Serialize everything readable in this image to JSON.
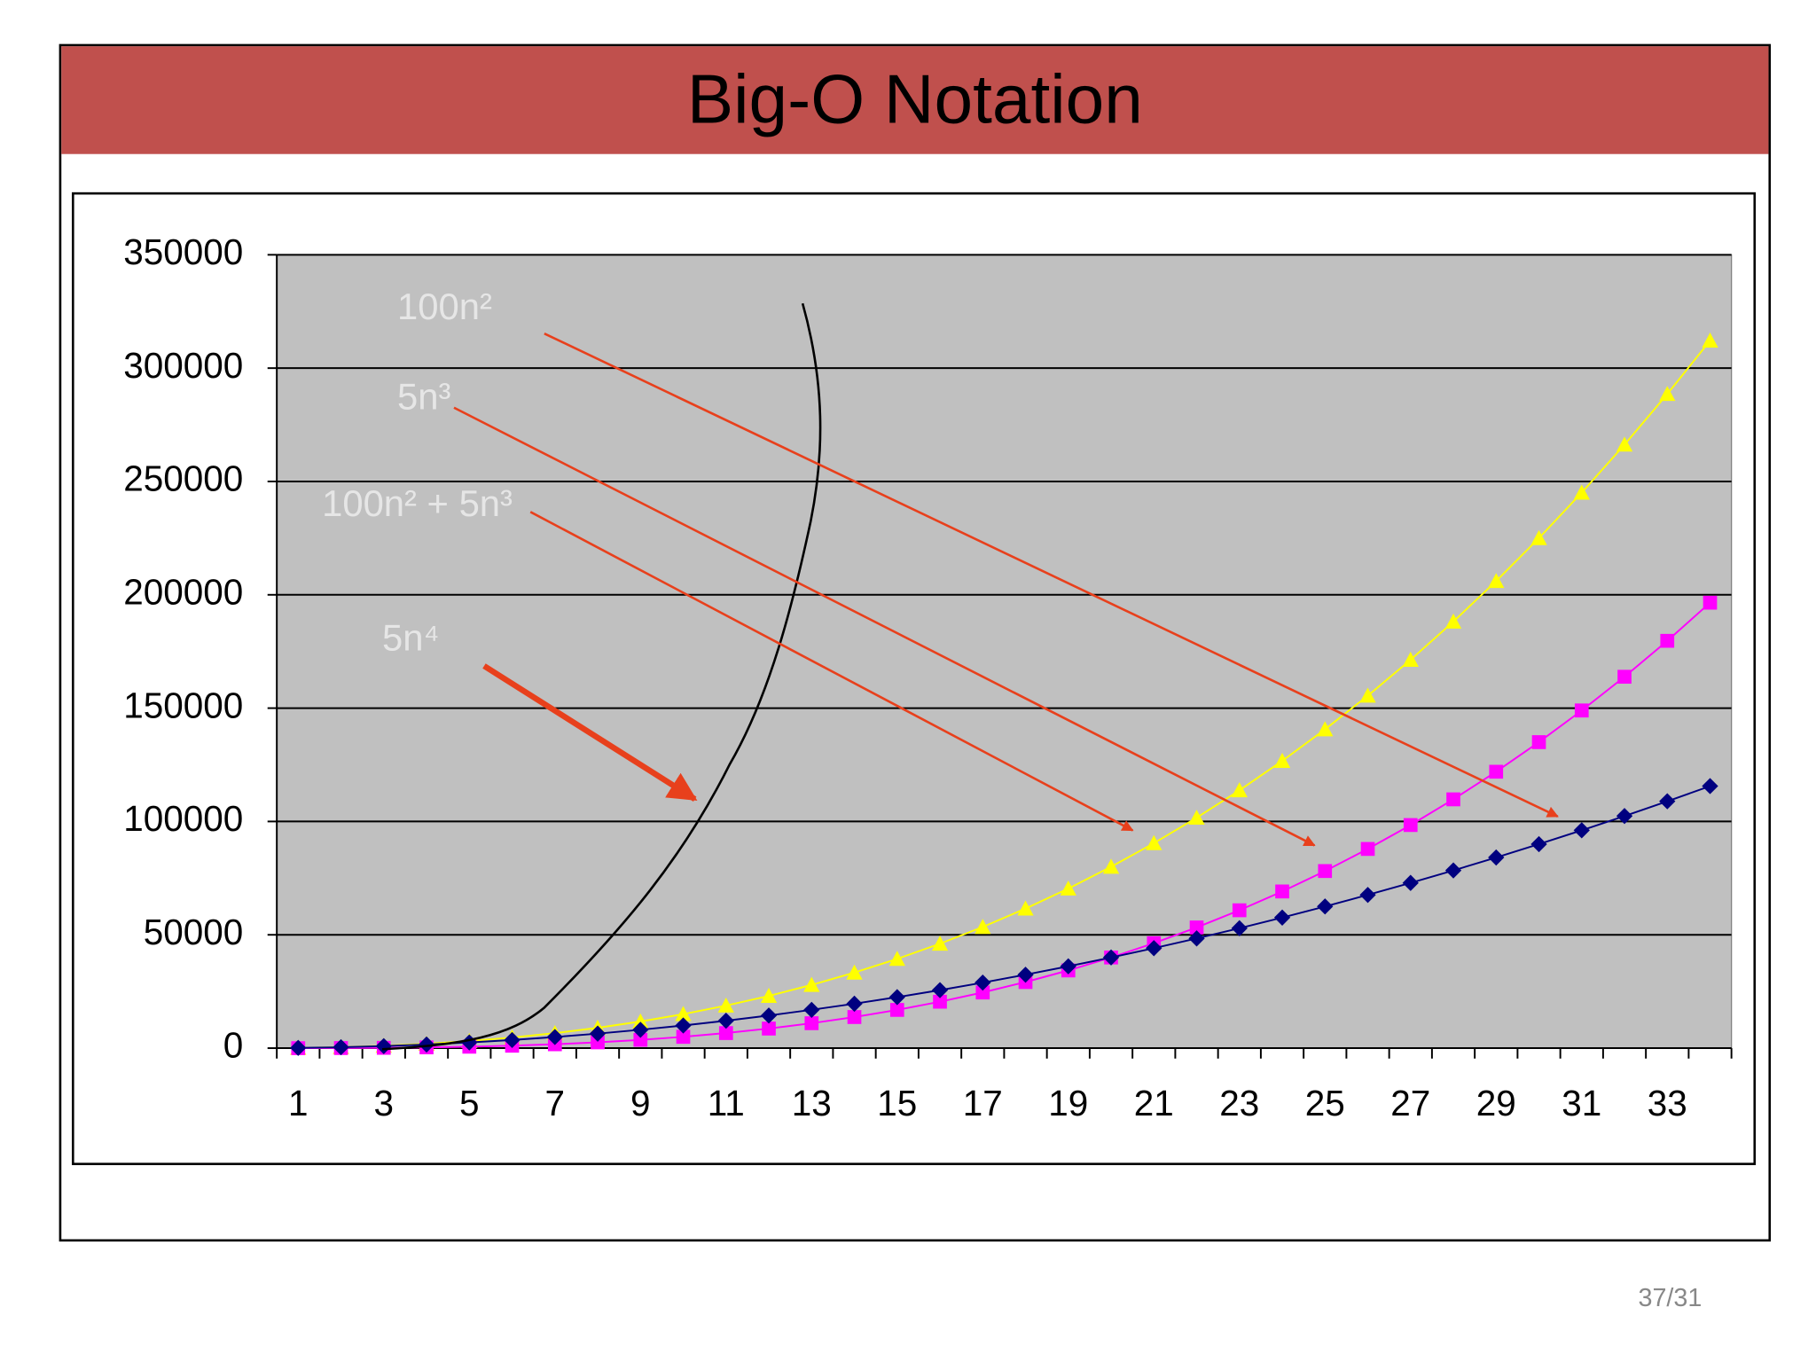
{
  "chart_data": {
    "type": "line",
    "title": "Big-O Notation",
    "categories": [
      "1",
      null,
      "3",
      null,
      "5",
      null,
      "7",
      null,
      "9",
      null,
      "11",
      null,
      "13",
      null,
      "15",
      null,
      "17",
      null,
      "19",
      null,
      "21",
      null,
      "23",
      null,
      "25",
      null,
      "27",
      null,
      "29",
      null,
      "31",
      null,
      "33",
      null
    ],
    "series": [
      {
        "color": "#ffff00",
        "marker": "triangle",
        "values": [
          105,
          440,
          1035,
          1920,
          3125,
          4680,
          6615,
          8960,
          11745,
          15000,
          18755,
          23040,
          27885,
          33320,
          39375,
          46080,
          53465,
          61560,
          70395,
          80000,
          90405,
          101640,
          113735,
          126720,
          140625,
          155480,
          171315,
          188160,
          206045,
          225000,
          245055,
          266240,
          288585,
          312120
        ]
      },
      {
        "color": "#ff00ff",
        "marker": "square",
        "values": [
          5,
          40,
          135,
          320,
          625,
          1080,
          1715,
          2560,
          3645,
          5000,
          6655,
          8640,
          10985,
          13720,
          16875,
          20480,
          24565,
          29160,
          34295,
          40000,
          46305,
          53240,
          60835,
          69120,
          78125,
          87880,
          98415,
          109760,
          121945,
          135000,
          148955,
          163840,
          179685,
          196520
        ]
      },
      {
        "color": "#000080",
        "marker": "diamond",
        "values": [
          100,
          400,
          900,
          1600,
          2500,
          3600,
          4900,
          6400,
          8100,
          10000,
          12100,
          14400,
          16900,
          19600,
          22500,
          25600,
          28900,
          32400,
          36100,
          40000,
          44100,
          48400,
          52900,
          57600,
          62500,
          67600,
          72900,
          78400,
          84100,
          90000,
          96100,
          102400,
          108900,
          115600
        ]
      }
    ],
    "ylim": [
      0,
      350000
    ],
    "yticks": [
      0,
      50000,
      100000,
      150000,
      200000,
      250000,
      300000,
      350000
    ],
    "grid": true,
    "annotations": [
      "100n²",
      "5n³",
      "100n² + 5n³",
      "5n⁴"
    ]
  },
  "page_number": "37/31"
}
